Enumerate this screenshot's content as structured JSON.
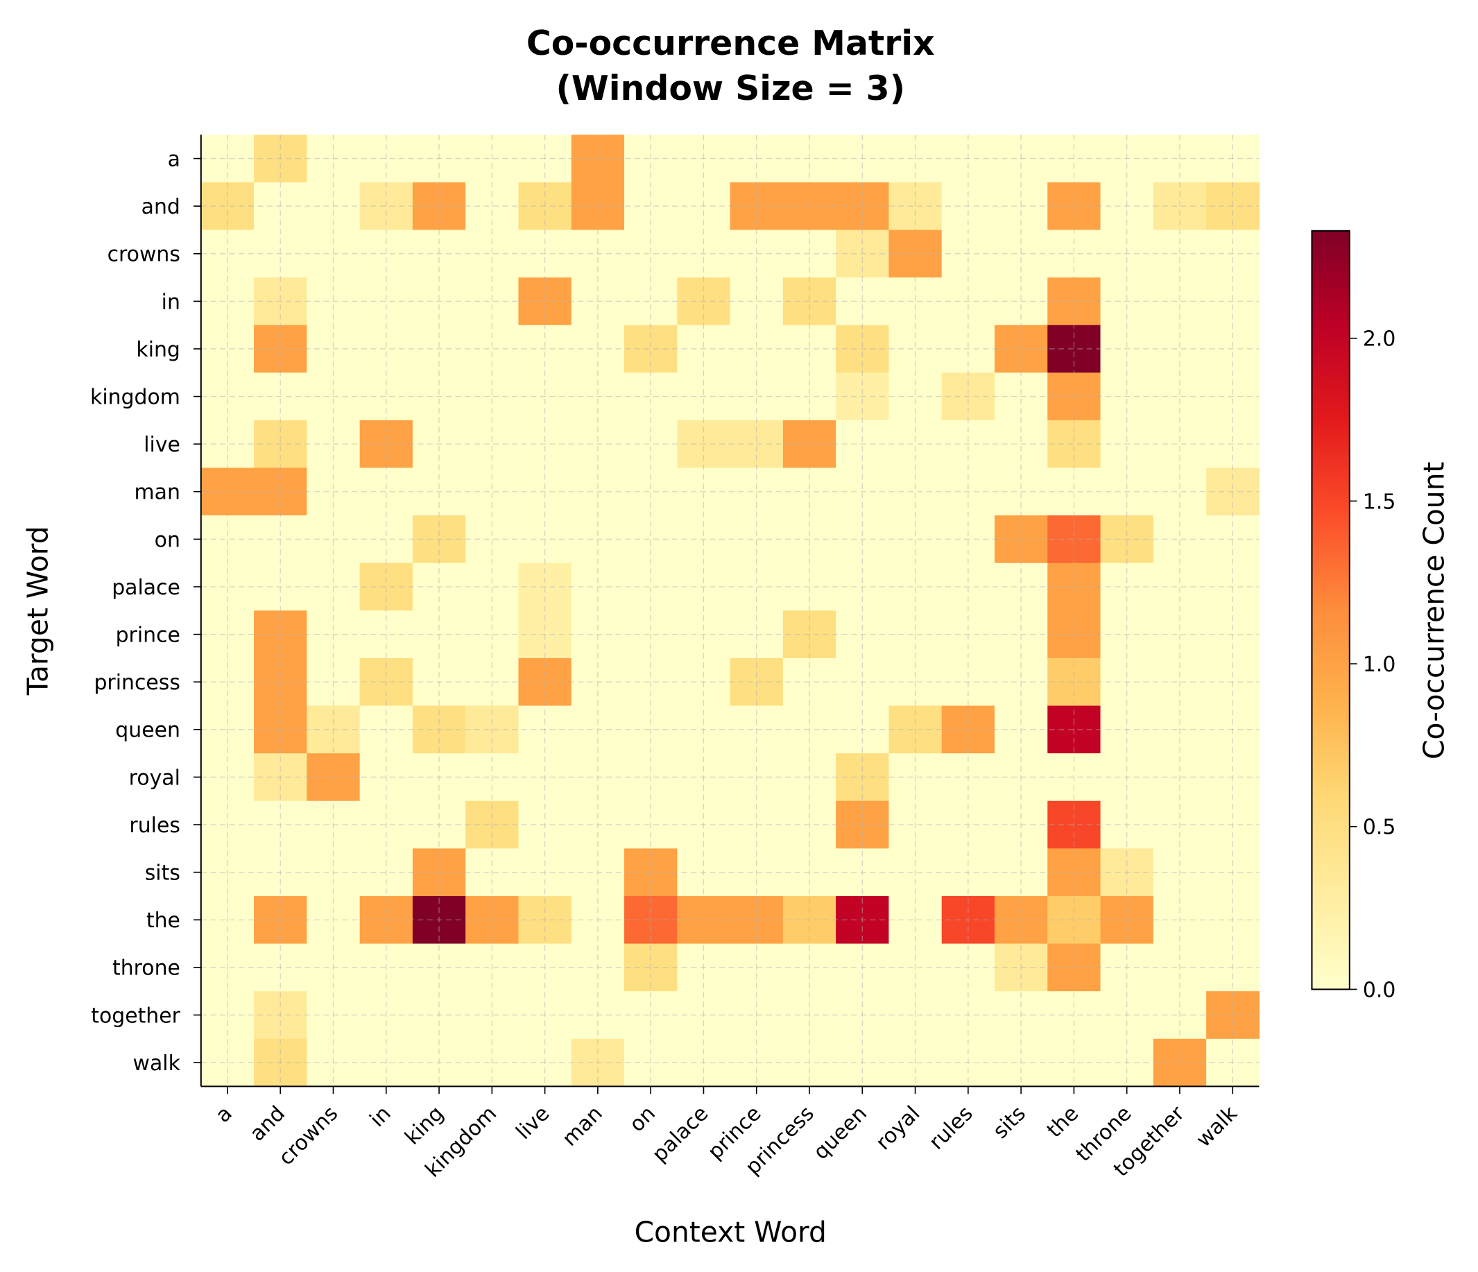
{
  "chart_data": {
    "type": "heatmap",
    "title": "Co-occurrence Matrix\n(Window Size = 3)",
    "x_label": "Context Word",
    "y_label": "Target Word",
    "colorbar_label": "Co-occurrence Count",
    "categories": [
      "a",
      "and",
      "crowns",
      "in",
      "king",
      "kingdom",
      "live",
      "man",
      "on",
      "palace",
      "prince",
      "princess",
      "queen",
      "royal",
      "rules",
      "sits",
      "the",
      "throne",
      "together",
      "walk"
    ],
    "values": [
      [
        0,
        0.5,
        0,
        0,
        0,
        0,
        0,
        1,
        0,
        0,
        0,
        0,
        0,
        0,
        0,
        0,
        0,
        0,
        0,
        0
      ],
      [
        0.5,
        0,
        0,
        0.33,
        1,
        0,
        0.5,
        1,
        0,
        0,
        1,
        1,
        1,
        0.33,
        0,
        0,
        1,
        0,
        0.33,
        0.5
      ],
      [
        0,
        0,
        0,
        0,
        0,
        0,
        0,
        0,
        0,
        0,
        0,
        0,
        0.33,
        1,
        0,
        0,
        0,
        0,
        0,
        0
      ],
      [
        0,
        0.33,
        0,
        0,
        0,
        0,
        1,
        0,
        0,
        0.5,
        0,
        0.5,
        0,
        0,
        0,
        0,
        1,
        0,
        0,
        0
      ],
      [
        0,
        1,
        0,
        0,
        0,
        0,
        0,
        0,
        0.5,
        0,
        0,
        0,
        0.5,
        0,
        0,
        1,
        2.33,
        0,
        0,
        0
      ],
      [
        0,
        0,
        0,
        0,
        0,
        0,
        0,
        0,
        0,
        0,
        0,
        0,
        0.25,
        0,
        0.33,
        0,
        1,
        0,
        0,
        0
      ],
      [
        0,
        0.5,
        0,
        1,
        0,
        0,
        0,
        0,
        0,
        0.33,
        0.33,
        1,
        0,
        0,
        0,
        0,
        0.5,
        0,
        0,
        0
      ],
      [
        1,
        1,
        0,
        0,
        0,
        0,
        0,
        0,
        0,
        0,
        0,
        0,
        0,
        0,
        0,
        0,
        0,
        0,
        0,
        0.33
      ],
      [
        0,
        0,
        0,
        0,
        0.5,
        0,
        0,
        0,
        0,
        0,
        0,
        0,
        0,
        0,
        0,
        1,
        1.33,
        0.5,
        0,
        0
      ],
      [
        0,
        0,
        0,
        0.5,
        0,
        0,
        0.25,
        0,
        0,
        0,
        0,
        0,
        0,
        0,
        0,
        0,
        1,
        0,
        0,
        0
      ],
      [
        0,
        1,
        0,
        0,
        0,
        0,
        0.25,
        0,
        0,
        0,
        0,
        0.5,
        0,
        0,
        0,
        0,
        1,
        0,
        0,
        0
      ],
      [
        0,
        1,
        0,
        0.5,
        0,
        0,
        1,
        0,
        0,
        0,
        0.5,
        0,
        0,
        0,
        0,
        0,
        0.67,
        0,
        0,
        0
      ],
      [
        0,
        1,
        0.33,
        0,
        0.5,
        0.33,
        0,
        0,
        0,
        0,
        0,
        0,
        0,
        0.5,
        1,
        0,
        2.0,
        0,
        0,
        0
      ],
      [
        0,
        0.33,
        1,
        0,
        0,
        0,
        0,
        0,
        0,
        0,
        0,
        0,
        0.5,
        0,
        0,
        0,
        0,
        0,
        0,
        0
      ],
      [
        0,
        0,
        0,
        0,
        0,
        0.5,
        0,
        0,
        0,
        0,
        0,
        0,
        1,
        0,
        0,
        0,
        1.5,
        0,
        0,
        0
      ],
      [
        0,
        0,
        0,
        0,
        1,
        0,
        0,
        0,
        1,
        0,
        0,
        0,
        0,
        0,
        0,
        0,
        1,
        0.33,
        0,
        0
      ],
      [
        0,
        1,
        0,
        1,
        2.33,
        1,
        0.5,
        0,
        1.33,
        1,
        1,
        0.67,
        2.0,
        0,
        1.5,
        1,
        0.67,
        1,
        0,
        0
      ],
      [
        0,
        0,
        0,
        0,
        0,
        0,
        0,
        0,
        0.5,
        0,
        0,
        0,
        0,
        0,
        0,
        0.33,
        1,
        0,
        0,
        0
      ],
      [
        0,
        0.33,
        0,
        0,
        0,
        0,
        0,
        0,
        0,
        0,
        0,
        0,
        0,
        0,
        0,
        0,
        0,
        0,
        0,
        1
      ],
      [
        0,
        0.5,
        0,
        0,
        0,
        0,
        0,
        0.33,
        0,
        0,
        0,
        0,
        0,
        0,
        0,
        0,
        0,
        0,
        1,
        0
      ]
    ],
    "colormap": [
      "#ffffcc",
      "#ffeda0",
      "#fed976",
      "#feb24c",
      "#fd8d3c",
      "#fc4e2a",
      "#e31a1c",
      "#bd0026",
      "#800026"
    ],
    "zlim": [
      0,
      2.33
    ],
    "zticks": [
      {
        "value": 0,
        "label": "0.0"
      },
      0.5,
      {
        "value": 1,
        "label": "1.0"
      },
      1.5,
      {
        "value": 2,
        "label": "2.0"
      }
    ],
    "grid": true
  }
}
